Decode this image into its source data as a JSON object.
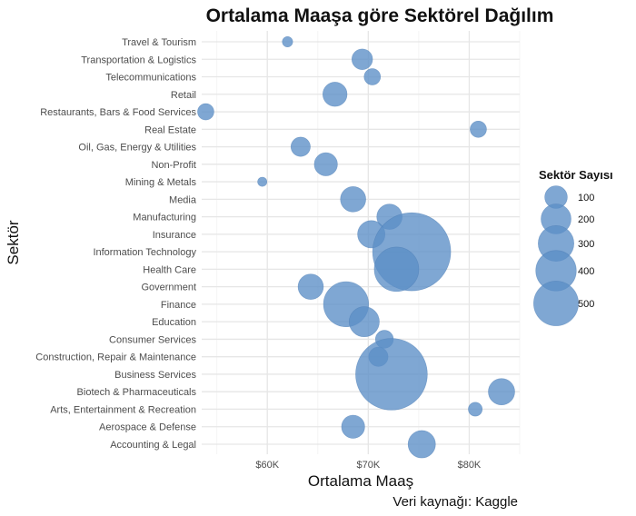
{
  "chart_data": {
    "type": "scatter",
    "title": "Ortalama Maaşa göre Sektörel Dağılım",
    "xlabel": "Ortalama Maaş",
    "ylabel": "Sektör",
    "caption": "Veri kaynağı: Kaggle",
    "xlim": [
      53500,
      85000
    ],
    "x_ticks": [
      {
        "value": 60000,
        "label": "$60K"
      },
      {
        "value": 70000,
        "label": "$70K"
      },
      {
        "value": 80000,
        "label": "$80K"
      }
    ],
    "grid": true,
    "point_color": "#5b8ec6",
    "legend": {
      "title": "Sektör Sayısı",
      "position": "right",
      "entries": [
        {
          "value": 100,
          "label": "100"
        },
        {
          "value": 200,
          "label": "200"
        },
        {
          "value": 300,
          "label": "300"
        },
        {
          "value": 400,
          "label": "400"
        },
        {
          "value": 500,
          "label": "500"
        }
      ]
    },
    "categories": [
      "Travel & Tourism",
      "Transportation & Logistics",
      "Telecommunications",
      "Retail",
      "Restaurants, Bars & Food Services",
      "Real Estate",
      "Oil, Gas, Energy & Utilities",
      "Non-Profit",
      "Mining & Metals",
      "Media",
      "Manufacturing",
      "Insurance",
      "Information Technology",
      "Health Care",
      "Government",
      "Finance",
      "Education",
      "Consumer Services",
      "Construction, Repair & Maintenance",
      "Business Services",
      "Biotech & Pharmaceuticals",
      "Arts, Entertainment & Recreation",
      "Aerospace & Defense",
      "Accounting & Legal"
    ],
    "points": [
      {
        "category": "Travel & Tourism",
        "x": 62000,
        "count": 10
      },
      {
        "category": "Transportation & Logistics",
        "x": 69400,
        "count": 40
      },
      {
        "category": "Telecommunications",
        "x": 70400,
        "count": 25
      },
      {
        "category": "Retail",
        "x": 66700,
        "count": 55
      },
      {
        "category": "Restaurants, Bars & Food Services",
        "x": 53900,
        "count": 25
      },
      {
        "category": "Real Estate",
        "x": 80900,
        "count": 25
      },
      {
        "category": "Oil, Gas, Energy & Utilities",
        "x": 63300,
        "count": 35
      },
      {
        "category": "Non-Profit",
        "x": 65800,
        "count": 50
      },
      {
        "category": "Mining & Metals",
        "x": 59500,
        "count": 8
      },
      {
        "category": "Media",
        "x": 68500,
        "count": 60
      },
      {
        "category": "Manufacturing",
        "x": 72100,
        "count": 60
      },
      {
        "category": "Insurance",
        "x": 70300,
        "count": 70
      },
      {
        "category": "Information Technology",
        "x": 74300,
        "count": 570
      },
      {
        "category": "Health Care",
        "x": 72800,
        "count": 185
      },
      {
        "category": "Government",
        "x": 64300,
        "count": 60
      },
      {
        "category": "Finance",
        "x": 67800,
        "count": 190
      },
      {
        "category": "Education",
        "x": 69600,
        "count": 85
      },
      {
        "category": "Consumer Services",
        "x": 71600,
        "count": 30
      },
      {
        "category": "Construction, Repair & Maintenance",
        "x": 71000,
        "count": 35
      },
      {
        "category": "Business Services",
        "x": 72300,
        "count": 480
      },
      {
        "category": "Biotech & Pharmaceuticals",
        "x": 83200,
        "count": 65
      },
      {
        "category": "Arts, Entertainment & Recreation",
        "x": 80600,
        "count": 18
      },
      {
        "category": "Aerospace & Defense",
        "x": 68500,
        "count": 50
      },
      {
        "category": "Accounting & Legal",
        "x": 75300,
        "count": 70
      }
    ]
  }
}
